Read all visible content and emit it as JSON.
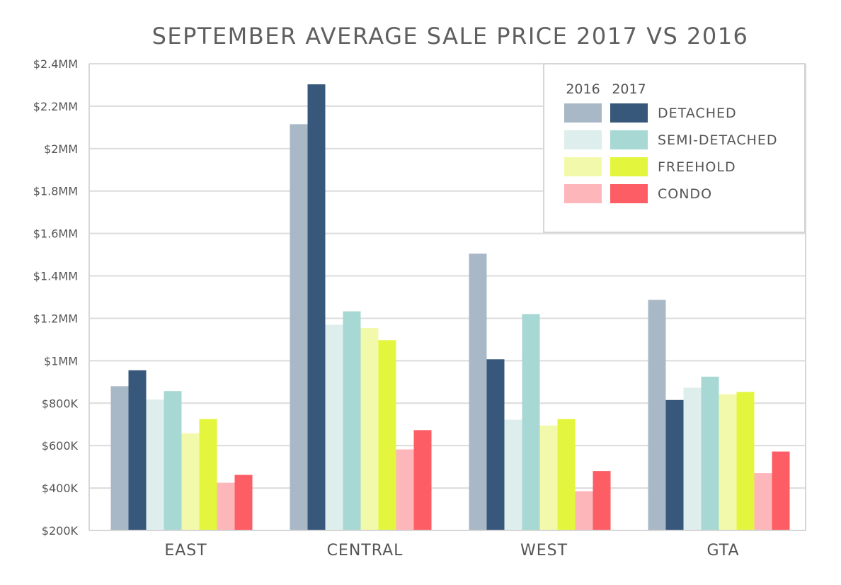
{
  "chart_data": {
    "type": "bar",
    "title": "SEPTEMBER AVERAGE SALE PRICE 2017 VS 2016",
    "xlabel": "",
    "ylabel": "",
    "categories": [
      "EAST",
      "CENTRAL",
      "WEST",
      "GTA"
    ],
    "ylim": [
      200000,
      2400000
    ],
    "yticks": [
      200000,
      400000,
      600000,
      800000,
      1000000,
      1200000,
      1400000,
      1600000,
      1800000,
      2000000,
      2200000,
      2400000
    ],
    "ytick_labels": [
      "$200K",
      "$400K",
      "$600K",
      "$800K",
      "$1MM",
      "$1.2MM",
      "$1.4MM",
      "$1.6MM",
      "$1.8MM",
      "$2MM",
      "$2.2MM",
      "$2.4MM"
    ],
    "grid": true,
    "legend_position": "top-right",
    "legend_years": [
      "2016",
      "2017"
    ],
    "legend_types": [
      "DETACHED",
      "SEMI-DETACHED",
      "FREEHOLD",
      "CONDO"
    ],
    "series": [
      {
        "year": "2016",
        "type": "DETACHED",
        "color": "#a9b8c6",
        "values": [
          880000,
          2115000,
          1505000,
          1287000
        ]
      },
      {
        "year": "2017",
        "type": "DETACHED",
        "color": "#38587b",
        "values": [
          955000,
          2303000,
          1007000,
          815000
        ]
      },
      {
        "year": "2016",
        "type": "SEMI-DETACHED",
        "color": "#deeeed",
        "values": [
          817000,
          1170000,
          722000,
          873000
        ]
      },
      {
        "year": "2017",
        "type": "SEMI-DETACHED",
        "color": "#a8d8d3",
        "values": [
          857000,
          1233000,
          1220000,
          925000
        ]
      },
      {
        "year": "2016",
        "type": "FREEHOLD",
        "color": "#f3f9aa",
        "values": [
          658000,
          1155000,
          695000,
          842000
        ]
      },
      {
        "year": "2017",
        "type": "FREEHOLD",
        "color": "#e3f63d",
        "values": [
          725000,
          1097000,
          725000,
          853000
        ]
      },
      {
        "year": "2016",
        "type": "CONDO",
        "color": "#fdb6ba",
        "values": [
          425000,
          582000,
          385000,
          470000
        ]
      },
      {
        "year": "2017",
        "type": "CONDO",
        "color": "#fd5d65",
        "values": [
          462000,
          673000,
          480000,
          572000
        ]
      }
    ]
  }
}
